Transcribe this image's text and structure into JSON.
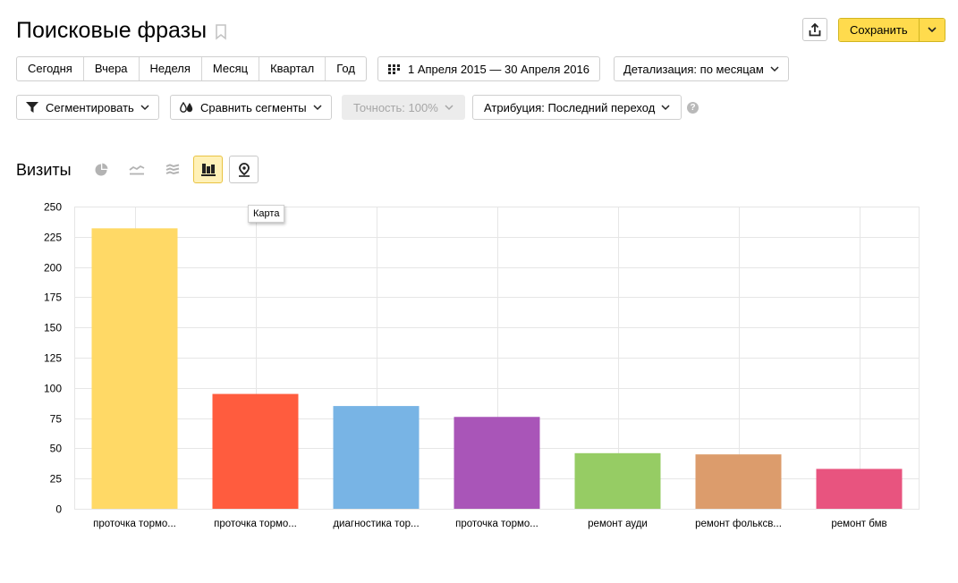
{
  "header": {
    "title": "Поисковые фразы",
    "save_label": "Сохранить"
  },
  "periods": [
    "Сегодня",
    "Вчера",
    "Неделя",
    "Месяц",
    "Квартал",
    "Год"
  ],
  "date_range": "1 Апреля 2015 — 30 Апреля 2016",
  "detalization": "Детализация: по месяцам",
  "segment_label": "Сегментировать",
  "compare_label": "Сравнить сегменты",
  "accuracy_label": "Точность: 100%",
  "attribution_label": "Атрибуция: Последний переход",
  "help_text": "?",
  "chart_section": {
    "title": "Визиты",
    "tooltip": "Карта",
    "chart_types": [
      {
        "icon": "pie-chart-icon"
      },
      {
        "icon": "line-chart-icon"
      },
      {
        "icon": "area-chart-icon"
      },
      {
        "icon": "bar-chart-icon",
        "active": true
      },
      {
        "icon": "map-pin-icon"
      }
    ]
  },
  "colors": {
    "accent": "#ffdb4d",
    "grid": "#e6e6e6"
  },
  "chart_data": {
    "type": "bar",
    "categories": [
      "проточка тормо...",
      "проточка тормо...",
      "диагностика тор...",
      "проточка тормо...",
      "ремонт ауди",
      "ремонт фольксв...",
      "ремонт бмв"
    ],
    "values": [
      232,
      95,
      85,
      76,
      46,
      45,
      33
    ],
    "colors": [
      "#ffd966",
      "#ff5c3e",
      "#78b4e5",
      "#a955b8",
      "#96cc64",
      "#dc9c6c",
      "#e8547f"
    ],
    "ylim": [
      0,
      250
    ],
    "yticks": [
      0,
      25,
      50,
      75,
      100,
      125,
      150,
      175,
      200,
      225,
      250
    ],
    "grid": true,
    "title": "",
    "xlabel": "",
    "ylabel": ""
  }
}
